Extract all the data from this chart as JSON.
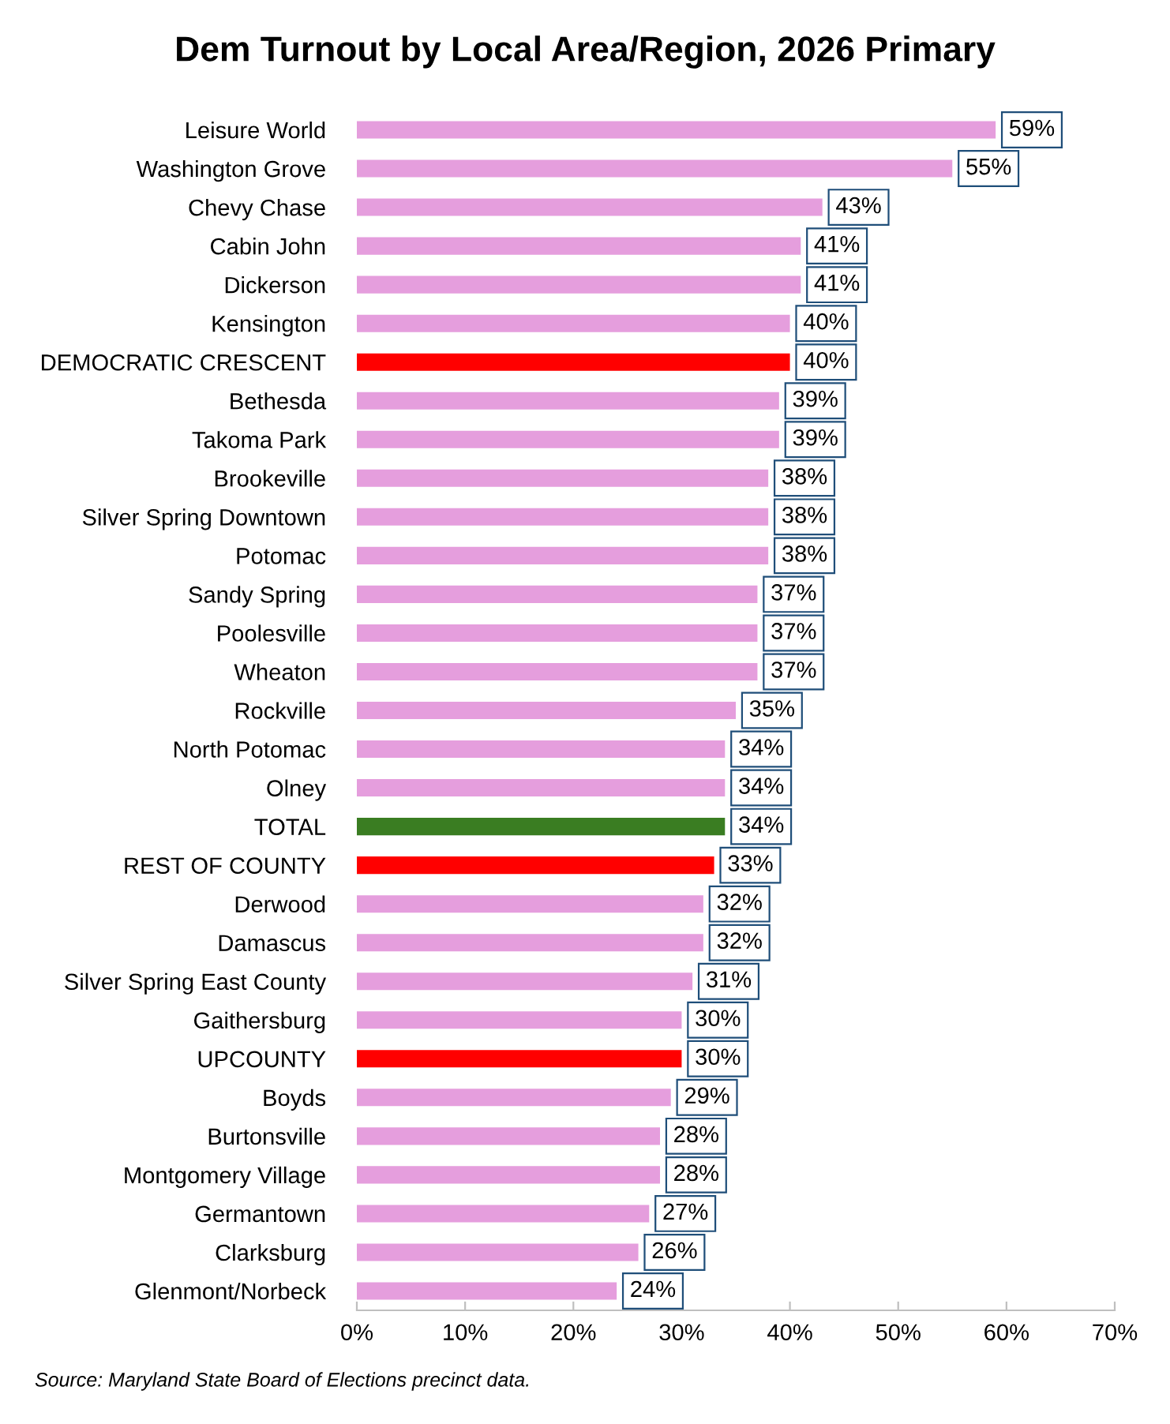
{
  "chart_data": {
    "type": "bar",
    "orientation": "horizontal",
    "title": "Dem Turnout by Local Area/Region, 2026 Primary",
    "categories": [
      "Leisure World",
      "Washington Grove",
      "Chevy Chase",
      "Cabin John",
      "Dickerson",
      "Kensington",
      "DEMOCRATIC CRESCENT",
      "Bethesda",
      "Takoma Park",
      "Brookeville",
      "Silver Spring Downtown",
      "Potomac",
      "Sandy Spring",
      "Poolesville",
      "Wheaton",
      "Rockville",
      "North Potomac",
      "Olney",
      "TOTAL",
      "REST OF COUNTY",
      "Derwood",
      "Damascus",
      "Silver Spring East County",
      "Gaithersburg",
      "UPCOUNTY",
      "Boyds",
      "Burtonsville",
      "Montgomery Village",
      "Germantown",
      "Clarksburg",
      "Glenmont/Norbeck"
    ],
    "values": [
      59,
      55,
      43,
      41,
      41,
      40,
      40,
      39,
      39,
      38,
      38,
      38,
      37,
      37,
      37,
      35,
      34,
      34,
      34,
      33,
      32,
      32,
      31,
      30,
      30,
      29,
      28,
      28,
      27,
      26,
      24
    ],
    "colors": [
      "#e59edd",
      "#e59edd",
      "#e59edd",
      "#e59edd",
      "#e59edd",
      "#e59edd",
      "#ff0000",
      "#e59edd",
      "#e59edd",
      "#e59edd",
      "#e59edd",
      "#e59edd",
      "#e59edd",
      "#e59edd",
      "#e59edd",
      "#e59edd",
      "#e59edd",
      "#e59edd",
      "#3a7d22",
      "#ff0000",
      "#e59edd",
      "#e59edd",
      "#e59edd",
      "#e59edd",
      "#ff0000",
      "#e59edd",
      "#e59edd",
      "#e59edd",
      "#e59edd",
      "#e59edd",
      "#e59edd"
    ],
    "xlim": [
      0,
      70
    ],
    "xticks": [
      {
        "value": 0,
        "label": "0%"
      },
      {
        "value": 10,
        "label": "10%"
      },
      {
        "value": 20,
        "label": "20%"
      },
      {
        "value": 30,
        "label": "30%"
      },
      {
        "value": 40,
        "label": "40%"
      },
      {
        "value": 50,
        "label": "50%"
      },
      {
        "value": 60,
        "label": "60%"
      },
      {
        "value": 70,
        "label": "70%"
      }
    ],
    "value_labels": [
      "59%",
      "55%",
      "43%",
      "41%",
      "41%",
      "40%",
      "40%",
      "39%",
      "39%",
      "38%",
      "38%",
      "38%",
      "37%",
      "37%",
      "37%",
      "35%",
      "34%",
      "34%",
      "34%",
      "33%",
      "32%",
      "32%",
      "31%",
      "30%",
      "30%",
      "29%",
      "28%",
      "28%",
      "27%",
      "26%",
      "24%"
    ],
    "grid": false,
    "legend": false,
    "annotations": [
      "Source: Maryland State Board of Elections precinct data."
    ]
  }
}
